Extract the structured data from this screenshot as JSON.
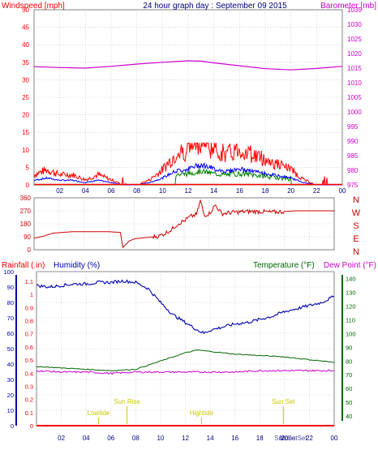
{
  "colors": {
    "wind": "#ff0000",
    "gust": "#ff0000",
    "wind_avg": "#0000ff",
    "wind_green": "#008000",
    "baro": "#cc00cc",
    "dir": "#cc0000",
    "humidity": "#0000aa",
    "temperature": "#006400",
    "dewpoint": "#cc00cc",
    "rain": "#ff0000",
    "sun": "#c8c800",
    "grid": "#c0c0c0"
  },
  "chart_data": [
    {
      "type": "line",
      "title": "24 hour graph day : September 09 2015",
      "left_label": "Windspeed [mph]",
      "right_label": "Barometer [mb]",
      "ylim": [
        0,
        50
      ],
      "y_ticks": [
        "0",
        "5",
        "10",
        "15",
        "20",
        "25",
        "30",
        "35",
        "40",
        "45",
        "50"
      ],
      "y2lim": [
        975,
        1035
      ],
      "y2_ticks": [
        "975",
        "980",
        "985",
        "990",
        "995",
        "1000",
        "1005",
        "1010",
        "1015",
        "1020",
        "1025",
        "1030",
        "1035"
      ],
      "xlim": [
        0,
        24
      ],
      "x_ticks": [
        "02",
        "04",
        "06",
        "08",
        "10",
        "12",
        "14",
        "16",
        "18",
        "20",
        "22",
        "00"
      ],
      "series": [
        {
          "name": "Windspeed",
          "values": [
            [
              0,
              2
            ],
            [
              1,
              3
            ],
            [
              2,
              2
            ],
            [
              3,
              2
            ],
            [
              4,
              1
            ],
            [
              5,
              2
            ],
            [
              6,
              1
            ],
            [
              7,
              0
            ],
            [
              8,
              0
            ],
            [
              9,
              1
            ],
            [
              10,
              3
            ],
            [
              11,
              6
            ],
            [
              12,
              7
            ],
            [
              13,
              9
            ],
            [
              14,
              7
            ],
            [
              15,
              6
            ],
            [
              16,
              7
            ],
            [
              17,
              6
            ],
            [
              18,
              5
            ],
            [
              19,
              4
            ],
            [
              20,
              3
            ],
            [
              21,
              1
            ],
            [
              22,
              0
            ],
            [
              23,
              0
            ],
            [
              24,
              0
            ]
          ]
        },
        {
          "name": "Barometer",
          "values": [
            [
              0,
              1015.5
            ],
            [
              2,
              1015.2
            ],
            [
              4,
              1015
            ],
            [
              6,
              1015.6
            ],
            [
              8,
              1016.4
            ],
            [
              10,
              1017
            ],
            [
              12,
              1017.5
            ],
            [
              13,
              1017.4
            ],
            [
              14,
              1016.8
            ],
            [
              16,
              1015.8
            ],
            [
              18,
              1014.8
            ],
            [
              20,
              1014.4
            ],
            [
              22,
              1014.9
            ],
            [
              24,
              1015.6
            ]
          ]
        }
      ]
    },
    {
      "type": "line",
      "right_labels": [
        "N",
        "W",
        "S",
        "E",
        "N"
      ],
      "ylim": [
        0,
        360
      ],
      "y_ticks": [
        "0",
        "90",
        "180",
        "270",
        "360"
      ],
      "xlim": [
        0,
        24
      ],
      "series": [
        {
          "name": "Wind direction",
          "values": [
            [
              0,
              80
            ],
            [
              0.8,
              95
            ],
            [
              1.5,
              115
            ],
            [
              2,
              118
            ],
            [
              3,
              125
            ],
            [
              4,
              125
            ],
            [
              6,
              125
            ],
            [
              6.9,
              120
            ],
            [
              7.1,
              15
            ],
            [
              7.6,
              60
            ],
            [
              8,
              75
            ],
            [
              9,
              85
            ],
            [
              10,
              95
            ],
            [
              10.5,
              115
            ],
            [
              11,
              140
            ],
            [
              11.5,
              180
            ],
            [
              12,
              200
            ],
            [
              12.5,
              230
            ],
            [
              13,
              245
            ],
            [
              13.3,
              340
            ],
            [
              13.6,
              240
            ],
            [
              14,
              250
            ],
            [
              14.5,
              310
            ],
            [
              15,
              250
            ],
            [
              16,
              260
            ],
            [
              17,
              265
            ],
            [
              18,
              265
            ],
            [
              19,
              260
            ],
            [
              20,
              265
            ],
            [
              21,
              270
            ],
            [
              24,
              270
            ]
          ]
        }
      ]
    },
    {
      "type": "line",
      "left_labels": [
        "Rainfall (.in)",
        "Humidity (%)"
      ],
      "right_labels": [
        "Temperature (°F)",
        "Dew Point (°F)"
      ],
      "rain_ticks": [
        "0",
        "0.1",
        "0.2",
        "0.3",
        "0.4",
        "0.5",
        "0.6",
        "0.7",
        "0.8",
        "0.9",
        "1",
        "1.1"
      ],
      "humidity_ticks": [
        "0",
        "10",
        "20",
        "30",
        "40",
        "50",
        "60",
        "70",
        "80",
        "90",
        "100"
      ],
      "temp_ticks": [
        "40",
        "50",
        "60",
        "70",
        "80",
        "90",
        "100",
        "110",
        "120",
        "130",
        "140"
      ],
      "ylim": [
        0,
        100
      ],
      "y2lim": [
        33,
        145
      ],
      "xlim": [
        0,
        24
      ],
      "x_ticks": [
        "02",
        "04",
        "06",
        "08",
        "10",
        "12",
        "14",
        "16",
        "18",
        "20",
        "22",
        "00"
      ],
      "annotations": [
        {
          "label": "Lowtide",
          "x": 5.0
        },
        {
          "label": "Sun Rise",
          "x": 7.3
        },
        {
          "label": "Hightide",
          "x": 13.3
        },
        {
          "label": "Sun Set",
          "x": 19.9
        }
      ],
      "bottom_labels": [
        "Sun Set",
        "Moon Set"
      ],
      "series": [
        {
          "name": "Humidity",
          "values": [
            [
              0,
              91
            ],
            [
              1,
              90
            ],
            [
              2,
              91
            ],
            [
              3,
              92
            ],
            [
              4,
              92
            ],
            [
              5,
              93
            ],
            [
              6,
              93
            ],
            [
              7,
              94
            ],
            [
              8,
              93
            ],
            [
              9,
              89
            ],
            [
              10,
              80
            ],
            [
              11,
              72
            ],
            [
              12,
              67
            ],
            [
              13,
              62
            ],
            [
              13.5,
              60
            ],
            [
              14,
              62
            ],
            [
              15,
              64
            ],
            [
              16,
              66
            ],
            [
              17,
              67
            ],
            [
              18,
              69
            ],
            [
              19,
              71
            ],
            [
              20,
              74
            ],
            [
              21,
              76
            ],
            [
              22,
              78
            ],
            [
              23,
              80
            ],
            [
              24,
              84
            ]
          ]
        },
        {
          "name": "Temperature",
          "values": [
            [
              0,
              76
            ],
            [
              2,
              75
            ],
            [
              4,
              74
            ],
            [
              6,
              73
            ],
            [
              8,
              74
            ],
            [
              10,
              80
            ],
            [
              12,
              86
            ],
            [
              13,
              88
            ],
            [
              14,
              87
            ],
            [
              16,
              85
            ],
            [
              18,
              84
            ],
            [
              20,
              83
            ],
            [
              22,
              81
            ],
            [
              24,
              79
            ]
          ]
        },
        {
          "name": "Dew Point",
          "values": [
            [
              0,
              73
            ],
            [
              2,
              72
            ],
            [
              4,
              72
            ],
            [
              6,
              71
            ],
            [
              8,
              72
            ],
            [
              10,
              72
            ],
            [
              12,
              72
            ],
            [
              14,
              72
            ],
            [
              16,
              72
            ],
            [
              18,
              73
            ],
            [
              20,
              73
            ],
            [
              22,
              73
            ],
            [
              24,
              73
            ]
          ]
        },
        {
          "name": "Rainfall",
          "values": [
            [
              0,
              0
            ],
            [
              24,
              0
            ]
          ]
        }
      ]
    }
  ]
}
